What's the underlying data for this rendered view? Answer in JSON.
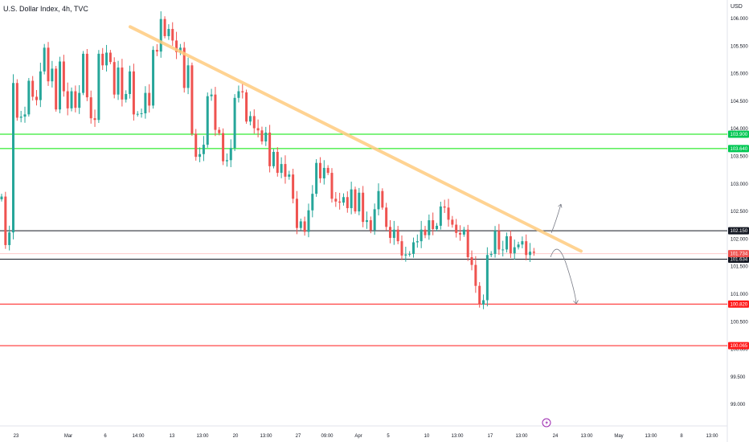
{
  "header": {
    "title": "U.S. Dollar Index, 4h, TVC",
    "unit": "USD"
  },
  "chart_data": {
    "type": "candlestick",
    "symbol": "U.S. Dollar Index",
    "interval": "4h",
    "source": "TVC",
    "currency": "USD",
    "ylim": [
      98.8,
      106.4
    ],
    "y_ticks": [
      "106.000",
      "105.500",
      "105.000",
      "104.500",
      "104.000",
      "103.500",
      "103.000",
      "102.500",
      "102.000",
      "101.500",
      "101.000",
      "100.500",
      "100.000",
      "99.500",
      "99.000"
    ],
    "x_ticks": [
      "23",
      "Mar",
      "6",
      "14:00",
      "13",
      "13:00",
      "20",
      "13:00",
      "27",
      "09:00",
      "Apr",
      "5",
      "10",
      "13:00",
      "17",
      "13:00",
      "24",
      "13:00",
      "May",
      "13:00",
      "8",
      "13:00"
    ],
    "close_path": [
      102.77,
      101.89,
      102.12,
      104.83,
      104.2,
      104.22,
      104.26,
      104.87,
      104.58,
      104.52,
      105.04,
      105.47,
      104.86,
      105.09,
      104.35,
      105.22,
      104.68,
      104.37,
      104.68,
      104.38,
      104.65,
      105.36,
      104.57,
      104.19,
      104.16,
      105.36,
      105.15,
      105.38,
      105.21,
      104.62,
      105.11,
      104.53,
      104.63,
      105.04,
      104.26,
      104.27,
      104.28,
      104.65,
      104.42,
      105.43,
      105.4,
      105.99,
      105.68,
      105.81,
      105.6,
      105.39,
      105.47,
      104.74,
      105.15,
      103.91,
      103.49,
      103.54,
      103.71,
      104.59,
      104.62,
      103.98,
      103.92,
      103.41,
      103.43,
      103.65,
      104.56,
      104.68,
      104.66,
      104.13,
      104.23,
      104.01,
      103.97,
      103.77,
      103.93,
      103.32,
      103.58,
      103.2,
      103.36,
      103.13,
      103.17,
      102.73,
      102.2,
      102.32,
      102.13,
      102.52,
      102.82,
      103.38,
      103.1,
      103.29,
      103.2,
      102.73,
      102.68,
      102.66,
      102.76,
      102.56,
      102.9,
      102.5,
      102.84,
      102.31,
      102.34,
      102.16,
      102.54,
      102.87,
      102.57,
      102.22,
      102.02,
      102.17,
      101.96,
      101.7,
      101.72,
      101.73,
      101.94,
      101.96,
      102.17,
      102.07,
      102.34,
      102.18,
      102.24,
      102.59,
      102.57,
      102.35,
      102.26,
      102.11,
      102.08,
      102.17,
      101.67,
      101.53,
      101.15,
      100.81,
      100.89,
      101.71,
      101.73,
      102.15,
      101.81,
      101.81,
      102.05,
      101.74,
      101.85,
      101.9,
      101.96,
      101.71,
      101.77,
      101.75
    ],
    "trendline": {
      "from": {
        "date": "Mar 8",
        "value": 105.85
      },
      "to": {
        "date": "Apr 24",
        "value": 101.78
      }
    },
    "levels": [
      {
        "value": "103.900",
        "color": "#00e600",
        "badge_bg": "#00c853",
        "badge_fg": "#ffffff"
      },
      {
        "value": "103.640",
        "color": "#00e600",
        "badge_bg": "#00c853",
        "badge_fg": "#ffffff"
      },
      {
        "value": "102.150",
        "color": "#131722",
        "badge_bg": "#131722",
        "badge_fg": "#ffffff"
      },
      {
        "value": "101.634",
        "color": "#131722",
        "badge_bg": "#131722",
        "badge_fg": "#ffffff"
      },
      {
        "value": "100.820",
        "color": "#ff1a1a",
        "badge_bg": "#ff1a1a",
        "badge_fg": "#ffffff"
      },
      {
        "value": "100.065",
        "color": "#ff1a1a",
        "badge_bg": "#ff1a1a",
        "badge_fg": "#ffffff"
      }
    ],
    "last_price": {
      "value": "101.734",
      "color": "#ef5350"
    },
    "colors": {
      "up": "#26a69a",
      "down": "#ef5350",
      "trendline": "#ffcc80",
      "grid_line": "#ffcccc"
    },
    "projection_arrows": [
      "up",
      "down"
    ],
    "event_marker_icon": "lightning-icon",
    "grid": false
  }
}
